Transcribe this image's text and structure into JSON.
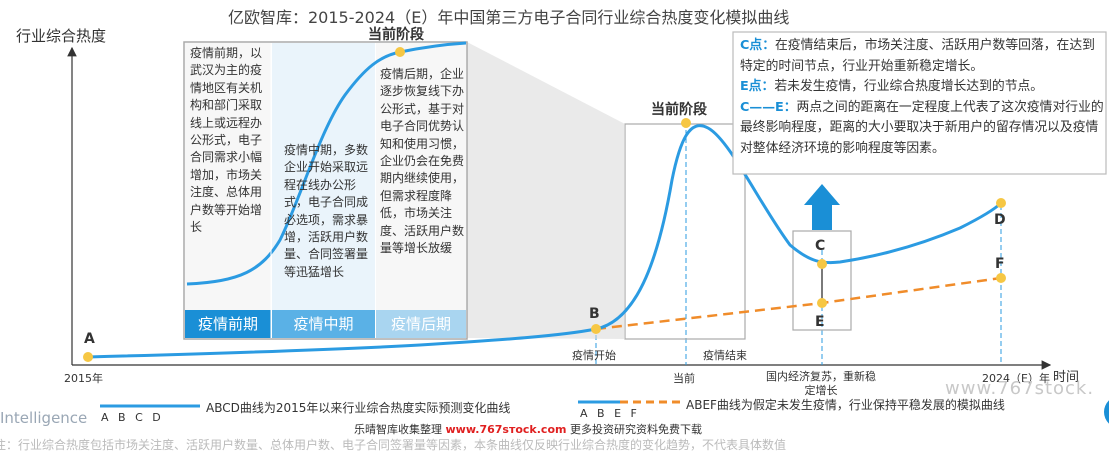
{
  "title": "亿欧智库：2015-2024（E）年中国第三方电子合同行业综合热度变化模拟曲线",
  "chart_data": {
    "type": "line",
    "title": "亿欧智库：2015-2024（E）年中国第三方电子合同行业综合热度变化模拟曲线",
    "ylabel": "行业综合热度",
    "xlabel": "时间",
    "x_ticks": {
      "start": "2015年",
      "epidemic_start": "疫情开始",
      "present": "当前",
      "epidemic_end": "疫情结束",
      "recovery": "国内经济复苏，重新稳定增长",
      "end": "2024（E）年"
    },
    "points": {
      "A": "A",
      "B": "B",
      "C": "C",
      "D": "D",
      "E": "E",
      "F": "F"
    },
    "series": [
      {
        "name": "ABCD曲线为2015年以来行业综合热度实际预测变化曲线",
        "color": "#2b9be2",
        "style": "solid"
      },
      {
        "name": "ABEF曲线为假定未发生疫情，行业保持平稳发展的模拟曲线",
        "color": "#f08c2a",
        "style": "dashed"
      }
    ],
    "current_stage_label": "当前阶段"
  },
  "inset": {
    "stage_label": "当前阶段",
    "col1": "疫情前期，以武汉为主的疫情地区有关机构和部门采取线上或远程办公形式，电子合同需求小幅增加，市场关注度、总体用户数等开始增长",
    "col2": "疫情中期，多数企业开始采取远程在线办公形式，电子合同成必选项，需求暴增，活跃用户数量、合同签署量等迅猛增长",
    "col3": "疫情后期，企业逐步恢复线下办公形式，基于对电子合同优势认知和使用习惯，企业仍会在免费期内继续使用，但需求程度降低，市场关注度、活跃用户数量等增长放缓",
    "phase1": "疫情前期",
    "phase2": "疫情中期",
    "phase3": "疫情后期"
  },
  "annotation": {
    "c_key": "C点：",
    "c_text": "在疫情结束后，市场关注度、活跃用户数等回落，在达到特定的时间节点，行业开始重新稳定增长。",
    "e_key": "E点：",
    "e_text": "若未发生疫情，行业综合热度增长达到的节点。",
    "ce_key": "C——E：",
    "ce_text": "两点之间的距离在一定程度上代表了这次疫情对行业的最终影响程度，距离的大小要取决于新用户的留存情况以及疫情对整体经济环境的影响程度等因素。"
  },
  "legend": {
    "abcd_markers": "A B C D",
    "abcd_text": "ABCD曲线为2015年以来行业综合热度实际预测变化曲线",
    "abef_markers": "A B E F",
    "abef_text": "ABEF曲线为假定未发生疫情，行业保持平稳发展的模拟曲线"
  },
  "watermark": "www.767stock.",
  "brand_fragment": "Intelligence",
  "credit_prefix": "乐晴智库收集整理",
  "credit_site": "www.767sтock.com",
  "credit_suffix": "更多投资研究资料免费下载",
  "footnote": "注：行业综合热度包括市场关注度、活跃用户数量、总体用户数、电子合同签署量等因素，本条曲线仅反映行业综合热度的变化趋势，不代表具体数值",
  "colors": {
    "actual_curve": "#2b9be2",
    "simulated_curve": "#f08c2a",
    "marker": "#f6c744",
    "phase_bar": "#2b9be2",
    "accent": "#1a8fd6"
  }
}
